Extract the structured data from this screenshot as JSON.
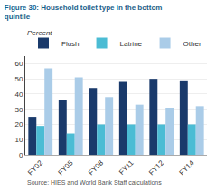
{
  "chart_data": {
    "type": "bar",
    "title": "Figure 30: Household toilet type in the bottom\nquintile",
    "subtitle": "Percent",
    "annotations": [
      "Source: HIES and World Bank Staff calculations"
    ],
    "categories": [
      "FY02",
      "FY05",
      "FY08",
      "FY11",
      "FY12",
      "FY14"
    ],
    "series": [
      {
        "name": "Flush",
        "color": "#1a3a6b",
        "values": [
          25,
          36,
          44,
          48,
          50,
          49
        ]
      },
      {
        "name": "Latrine",
        "color": "#4bbcd4",
        "values": [
          19,
          14,
          20,
          20,
          20,
          20
        ]
      },
      {
        "name": "Other",
        "color": "#aacce8",
        "values": [
          57,
          51,
          38,
          33,
          31,
          32
        ]
      }
    ],
    "ylim": [
      0,
      65
    ],
    "yticks": [
      0,
      10,
      20,
      30,
      40,
      50,
      60
    ],
    "grid": true,
    "legend": "upper left"
  }
}
